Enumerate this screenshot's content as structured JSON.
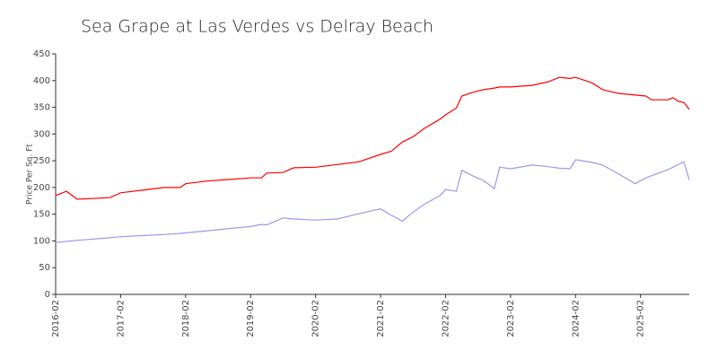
{
  "chart_data": {
    "type": "line",
    "title": "Sea Grape at Las Verdes vs Delray Beach",
    "y_label": "Price Per Sq. Ft",
    "x": [
      "2016-02",
      "2016-04",
      "2016-06",
      "2016-12",
      "2017-02",
      "2017-06",
      "2017-10",
      "2018-01",
      "2018-02",
      "2018-06",
      "2018-10",
      "2019-02",
      "2019-04",
      "2019-05",
      "2019-08",
      "2019-10",
      "2020-02",
      "2020-06",
      "2020-10",
      "2021-02",
      "2021-04",
      "2021-06",
      "2021-08",
      "2021-10",
      "2022-01",
      "2022-02",
      "2022-04",
      "2022-05",
      "2022-07",
      "2022-09",
      "2022-11",
      "2022-12",
      "2023-02",
      "2023-06",
      "2023-09",
      "2023-11",
      "2024-01",
      "2024-02",
      "2024-05",
      "2024-07",
      "2024-10",
      "2025-01",
      "2025-03",
      "2025-04",
      "2025-07",
      "2025-08",
      "2025-09",
      "2025-10",
      "2025-11"
    ],
    "series": [
      {
        "color": "#ff0000",
        "values": [
          185,
          193,
          178,
          181,
          190,
          195,
          200,
          200,
          207,
          212,
          215,
          218,
          218,
          227,
          228,
          237,
          238,
          243,
          248,
          262,
          268,
          285,
          295,
          310,
          328,
          336,
          349,
          371,
          378,
          383,
          386,
          388,
          388,
          391,
          398,
          406,
          404,
          406,
          396,
          383,
          376,
          373,
          371,
          364,
          364,
          368,
          361,
          359,
          346
        ]
      },
      {
        "color": "#9999ee",
        "values": [
          97,
          99,
          101,
          106,
          108,
          110,
          112,
          114,
          115,
          119,
          123,
          127,
          131,
          130,
          143,
          141,
          139,
          141,
          151,
          160,
          148,
          137,
          154,
          168,
          185,
          196,
          193,
          232,
          222,
          213,
          198,
          238,
          235,
          242,
          239,
          236,
          235,
          252,
          247,
          242,
          225,
          207,
          218,
          222,
          233,
          238,
          243,
          248,
          214
        ]
      }
    ],
    "xlim": [
      "2016-02",
      "2025-11"
    ],
    "xticks": [
      "2016-02",
      "2017-02",
      "2018-02",
      "2019-02",
      "2020-02",
      "2021-02",
      "2022-02",
      "2023-02",
      "2024-02",
      "2025-02"
    ],
    "ylim": [
      0,
      450
    ],
    "yticks": [
      0,
      50,
      100,
      150,
      200,
      250,
      300,
      350,
      400,
      450
    ],
    "grid": false
  }
}
